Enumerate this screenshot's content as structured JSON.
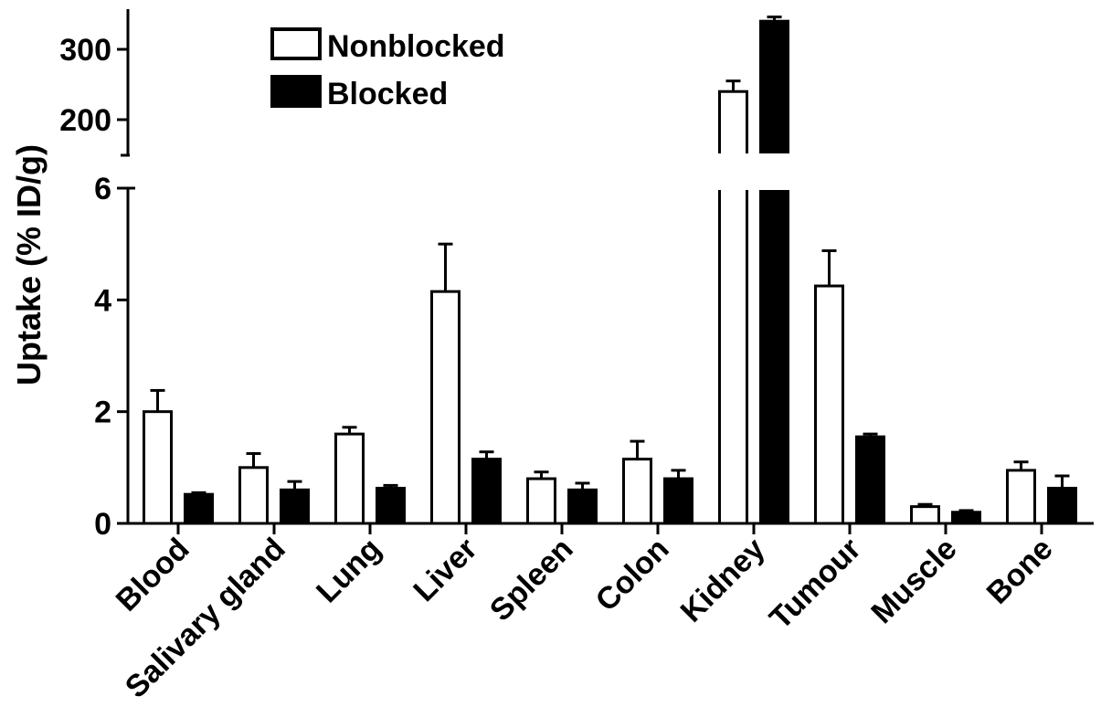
{
  "chart_data": {
    "type": "bar",
    "title": "",
    "xlabel": "",
    "ylabel": "Uptake (% ID/g)",
    "categories": [
      "Blood",
      "Salivary gland",
      "Lung",
      "Liver",
      "Spleen",
      "Colon",
      "Kidney",
      "Tumour",
      "Muscle",
      "Bone"
    ],
    "series": [
      {
        "name": "Nonblocked",
        "fill": "#ffffff",
        "values": [
          2.0,
          1.0,
          1.6,
          4.15,
          0.8,
          1.15,
          240,
          4.25,
          0.3,
          0.95
        ],
        "errors": [
          0.38,
          0.25,
          0.12,
          0.85,
          0.12,
          0.32,
          15,
          0.63,
          0.04,
          0.15
        ]
      },
      {
        "name": "Blocked",
        "fill": "#000000",
        "values": [
          0.52,
          0.6,
          0.63,
          1.15,
          0.6,
          0.8,
          340,
          1.55,
          0.2,
          0.63
        ],
        "errors": [
          0.03,
          0.15,
          0.05,
          0.13,
          0.12,
          0.15,
          6,
          0.05,
          0.03,
          0.22
        ]
      }
    ],
    "y_axis": {
      "broken": true,
      "lower_segment": {
        "range": [
          0,
          6
        ],
        "ticks": [
          "0",
          "2",
          "4",
          "6"
        ]
      },
      "upper_segment": {
        "range": [
          180,
          350
        ],
        "ticks": [
          "200",
          "300"
        ]
      }
    },
    "error_bars": "upper",
    "grid": false,
    "legend_position": "top-center"
  }
}
